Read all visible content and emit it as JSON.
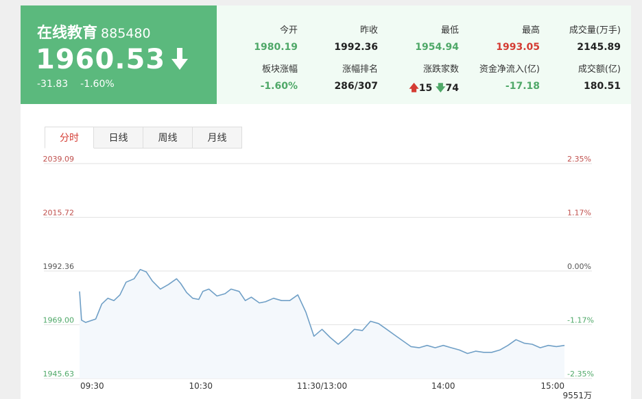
{
  "header": {
    "name": "在线教育",
    "code": "885480",
    "price": "1960.53",
    "change": "-31.83",
    "change_pct": "-1.60%",
    "trend_icon": "arrow-down-icon",
    "bg_color": "#5bb97d"
  },
  "stats": [
    {
      "label": "今开",
      "value": "1980.19",
      "color": "green"
    },
    {
      "label": "昨收",
      "value": "1992.36",
      "color": "dark"
    },
    {
      "label": "最低",
      "value": "1954.94",
      "color": "green"
    },
    {
      "label": "最高",
      "value": "1993.05",
      "color": "red"
    },
    {
      "label": "成交量(万手)",
      "value": "2145.89",
      "color": "dark"
    },
    {
      "label": "板块涨幅",
      "value": "-1.60%",
      "color": "green"
    },
    {
      "label": "涨幅排名",
      "value": "286/307",
      "color": "dark"
    },
    {
      "label": "涨跌家数",
      "up": "15",
      "down": "74"
    },
    {
      "label": "资金净流入(亿)",
      "value": "-17.18",
      "color": "green"
    },
    {
      "label": "成交额(亿)",
      "value": "180.51",
      "color": "dark"
    }
  ],
  "tabs": [
    {
      "label": "分时",
      "active": true
    },
    {
      "label": "日线",
      "active": false
    },
    {
      "label": "周线",
      "active": false
    },
    {
      "label": "月线",
      "active": false
    }
  ],
  "chart_data": {
    "type": "line",
    "grid": true,
    "ylim": [
      1945.63,
      2039.09
    ],
    "y_ticks_left": [
      "2039.09",
      "2015.72",
      "1992.36",
      "1969.00",
      "1945.63"
    ],
    "y_ticks_right": [
      "2.35%",
      "1.17%",
      "0.00%",
      "-1.17%",
      "-2.35%"
    ],
    "x_ticks": [
      "09:30",
      "10:30",
      "11:30/13:00",
      "14:00",
      "15:00"
    ],
    "volume_label": "9551万",
    "x_minutes": [
      0,
      1,
      3,
      8,
      11,
      14,
      17,
      20,
      23,
      27,
      30,
      33,
      36,
      40,
      44,
      48,
      50,
      53,
      56,
      59,
      61,
      64,
      68,
      72,
      75,
      79,
      82,
      85,
      89,
      92,
      96,
      100,
      104,
      108,
      112,
      116,
      120,
      124,
      128,
      132,
      136,
      140,
      144,
      148,
      152,
      156,
      160,
      164,
      168,
      172,
      176,
      180,
      184,
      188,
      192,
      196,
      200,
      204,
      208,
      212,
      216,
      220,
      224,
      228,
      232,
      236,
      240
    ],
    "y": [
      1983.5,
      1971.0,
      1970.0,
      1971.5,
      1978.0,
      1980.5,
      1979.5,
      1982.0,
      1987.5,
      1989.0,
      1993.0,
      1992.0,
      1988.0,
      1984.5,
      1986.5,
      1989.0,
      1987.0,
      1983.0,
      1980.5,
      1980.0,
      1983.5,
      1984.5,
      1981.5,
      1982.5,
      1984.5,
      1983.5,
      1979.5,
      1981.0,
      1978.5,
      1979.0,
      1980.5,
      1979.5,
      1979.5,
      1982.0,
      1974.5,
      1964.0,
      1967.0,
      1963.5,
      1960.5,
      1963.5,
      1967.0,
      1966.5,
      1970.5,
      1969.5,
      1967.0,
      1964.5,
      1962.0,
      1959.5,
      1959.0,
      1960.0,
      1959.0,
      1960.0,
      1959.0,
      1958.0,
      1956.5,
      1957.5,
      1957.0,
      1957.0,
      1958.0,
      1960.0,
      1962.5,
      1961.0,
      1960.5,
      1959.0,
      1960.0,
      1959.5,
      1960.0
    ],
    "line_color": "#6f9fc6"
  }
}
